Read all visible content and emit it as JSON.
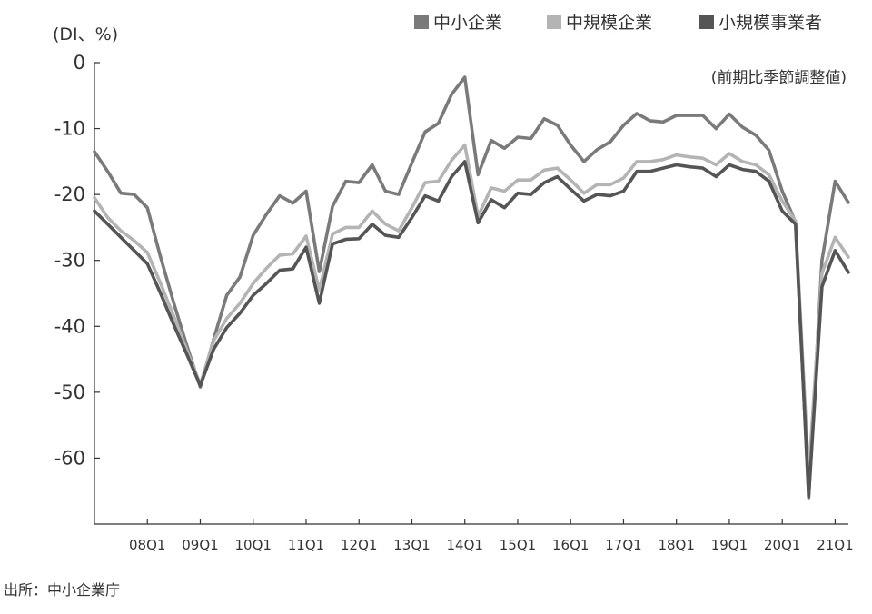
{
  "chart_data": {
    "type": "line",
    "unit_label": "(DI、%)",
    "note": "(前期比季節調整値)",
    "source": "出所：中小企業庁",
    "ylim": [
      -70,
      0
    ],
    "yticks": [
      0,
      -10,
      -20,
      -30,
      -40,
      -50,
      -60
    ],
    "x_start": "2007Q1",
    "x_ticks": [
      {
        "label": "08Q1",
        "quarter": "2008Q1"
      },
      {
        "label": "09Q1",
        "quarter": "2009Q1"
      },
      {
        "label": "10Q1",
        "quarter": "2010Q1"
      },
      {
        "label": "11Q1",
        "quarter": "2011Q1"
      },
      {
        "label": "12Q1",
        "quarter": "2012Q1"
      },
      {
        "label": "13Q1",
        "quarter": "2013Q1"
      },
      {
        "label": "14Q1",
        "quarter": "2014Q1"
      },
      {
        "label": "15Q1",
        "quarter": "2015Q1"
      },
      {
        "label": "16Q1",
        "quarter": "2016Q1"
      },
      {
        "label": "17Q1",
        "quarter": "2017Q1"
      },
      {
        "label": "18Q1",
        "quarter": "2018Q1"
      },
      {
        "label": "19Q1",
        "quarter": "2019Q1"
      },
      {
        "label": "20Q1",
        "quarter": "2020Q1"
      },
      {
        "label": "21Q1",
        "quarter": "2021Q1"
      }
    ],
    "x_end": "2021Q2",
    "grid": false,
    "legend_position": "top-right",
    "series": [
      {
        "name": "中小企業",
        "color": "#7a7a7a",
        "values": [
          -13.5,
          -16.5,
          -19.8,
          -20,
          -22,
          -29.5,
          -36.5,
          -43,
          -49.2,
          -42,
          -35.3,
          -32.5,
          -26.2,
          -23,
          -20.2,
          -21.3,
          -19.5,
          -31.7,
          -21.8,
          -18,
          -18.2,
          -15.5,
          -19.5,
          -20,
          -15.2,
          -10.5,
          -9.2,
          -4.8,
          -2.2,
          -17,
          -11.8,
          -13,
          -11.3,
          -11.5,
          -8.5,
          -9.5,
          -12.5,
          -15,
          -13.2,
          -12,
          -9.5,
          -7.7,
          -8.8,
          -9,
          -8,
          -8,
          -8,
          -10,
          -7.8,
          -9.8,
          -11,
          -13.3,
          -19.5,
          -24.2,
          -66,
          -30,
          -18,
          -21.2
        ]
      },
      {
        "name": "中規模企業",
        "color": "#b4b4b4",
        "values": [
          -20.5,
          -23.5,
          -25.5,
          -27,
          -28.8,
          -33.5,
          -38.5,
          -43.7,
          -48.8,
          -42.2,
          -38.8,
          -36.5,
          -33.5,
          -31.2,
          -29.2,
          -29,
          -26.3,
          -34.5,
          -26,
          -25,
          -25,
          -22.5,
          -24.5,
          -25.5,
          -22,
          -18.2,
          -18,
          -14.8,
          -12.5,
          -23.3,
          -19,
          -19.5,
          -17.8,
          -17.8,
          -16.3,
          -16,
          -17.8,
          -19.8,
          -18.5,
          -18.5,
          -17.5,
          -15,
          -15,
          -14.7,
          -14,
          -14.3,
          -14.5,
          -15.5,
          -13.8,
          -15,
          -15.5,
          -17,
          -21,
          -24,
          -62.5,
          -32,
          -26.5,
          -29.5
        ]
      },
      {
        "name": "小規模事業者",
        "color": "#555555",
        "values": [
          -22.5,
          -24.5,
          -26.5,
          -28.5,
          -30.5,
          -35,
          -39.8,
          -44.3,
          -49,
          -43.5,
          -40.2,
          -38,
          -35.3,
          -33.5,
          -31.5,
          -31.3,
          -28,
          -36.5,
          -27.5,
          -26.8,
          -26.7,
          -24.5,
          -26.2,
          -26.5,
          -23.5,
          -20.2,
          -21,
          -17.3,
          -15,
          -24.3,
          -20.8,
          -22,
          -19.8,
          -20,
          -18.2,
          -17.3,
          -19.2,
          -21,
          -20,
          -20.2,
          -19.5,
          -16.5,
          -16.5,
          -16,
          -15.5,
          -15.8,
          -16,
          -17.3,
          -15.5,
          -16.2,
          -16.5,
          -18,
          -22.5,
          -24.5,
          -65.8,
          -34,
          -28.5,
          -31.8
        ]
      }
    ]
  }
}
